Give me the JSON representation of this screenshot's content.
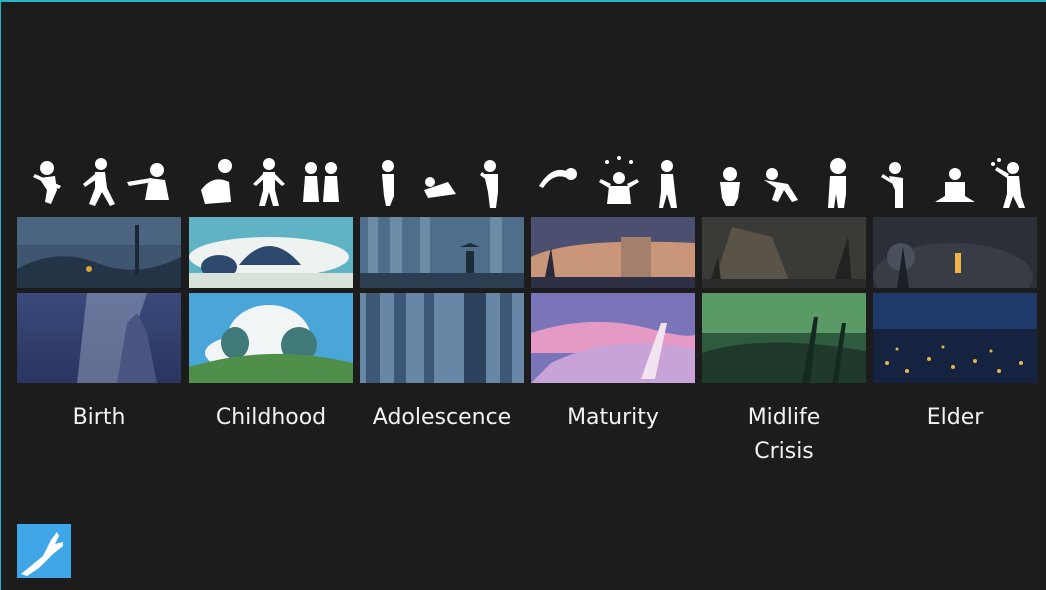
{
  "stages": [
    {
      "label": "Birth"
    },
    {
      "label": "Childhood"
    },
    {
      "label": "Adolescence"
    },
    {
      "label": "Maturity"
    },
    {
      "label": "Midlife\nCrisis"
    },
    {
      "label": "Elder"
    }
  ],
  "colors": {
    "background": "#1c1c1c",
    "frame_accent": "#27b6c9",
    "label_text": "#f2f2f2",
    "logo_bg": "#3fa7e8"
  },
  "logo": {
    "icon": "hand-reaching-icon"
  }
}
